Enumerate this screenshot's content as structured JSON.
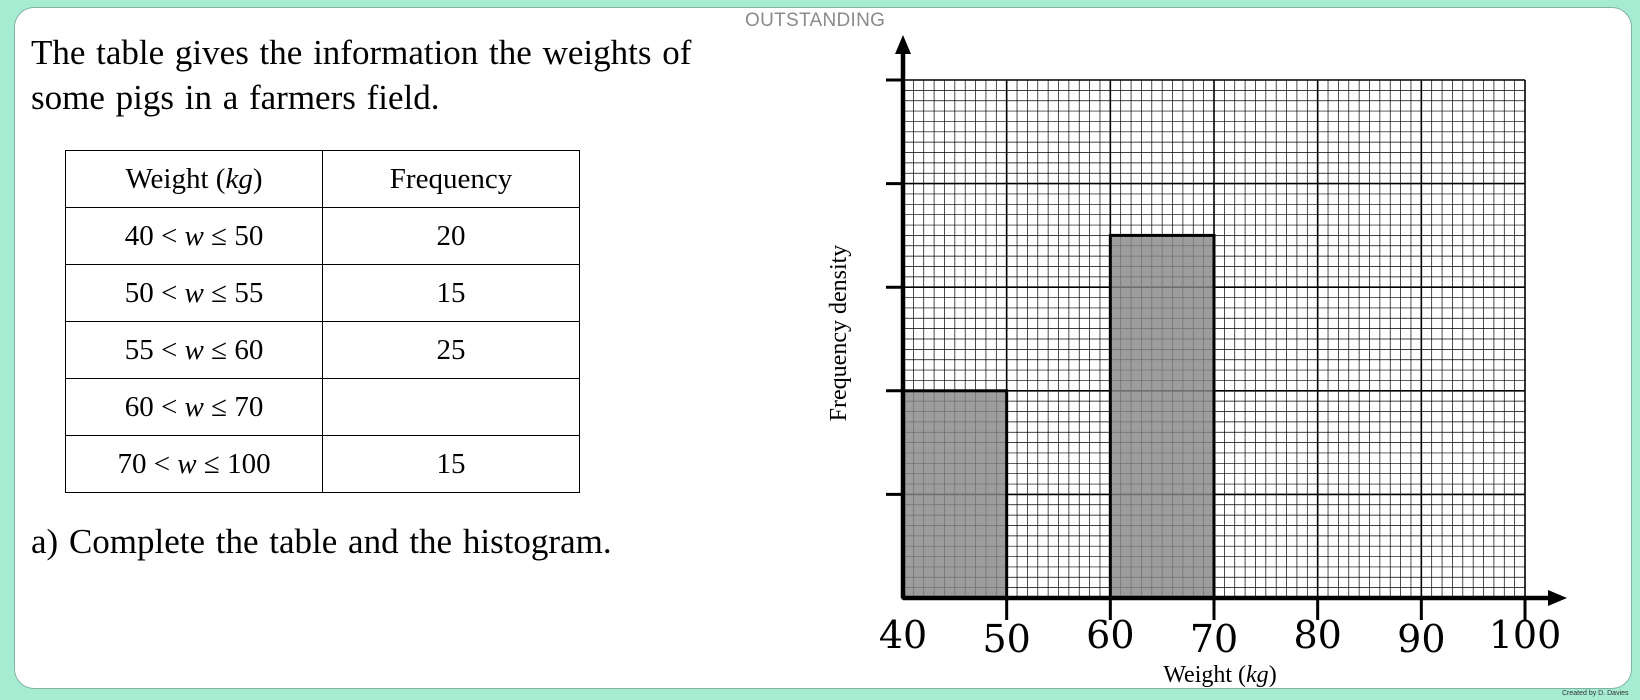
{
  "level_label": "OUTSTANDING",
  "question": {
    "intro": "The table gives the information the weights of some pigs in a farmers field.",
    "part_a": "a) Complete the table and the histogram."
  },
  "table": {
    "headers": {
      "weight": {
        "prefix": "Weight (",
        "unit": "kg",
        "suffix": ")"
      },
      "frequency": "Frequency"
    },
    "rows": [
      {
        "lower": "40",
        "upper": "50",
        "frequency": "20"
      },
      {
        "lower": "50",
        "upper": "55",
        "frequency": "15"
      },
      {
        "lower": "55",
        "upper": "60",
        "frequency": "25"
      },
      {
        "lower": "60",
        "upper": "70",
        "frequency": ""
      },
      {
        "lower": "70",
        "upper": "100",
        "frequency": "15"
      }
    ]
  },
  "chart_data": {
    "type": "bar",
    "subtype": "histogram",
    "ylabel": "Frequency density",
    "xlabel": {
      "prefix": "Weight (",
      "unit": "kg",
      "suffix": ")"
    },
    "xlim": [
      40,
      100
    ],
    "x_ticks": [
      "40",
      "50",
      "60",
      "70",
      "80",
      "90",
      "100"
    ],
    "ylim": [
      0,
      5
    ],
    "y_tick_count": 5,
    "y_tick_labels": [],
    "grid": true,
    "bars": [
      {
        "x0": 40,
        "x1": 50,
        "density": 2
      },
      {
        "x0": 60,
        "x1": 70,
        "density": 3.5
      }
    ],
    "bar_color": "#888888"
  },
  "credit": "Created by D. Davies"
}
